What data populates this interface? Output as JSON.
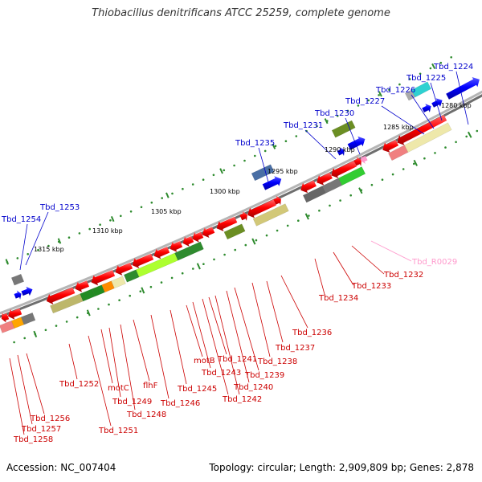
{
  "title": "Thiobacillus denitrificans ATCC 25259, complete genome",
  "footer": {
    "accession": "Accession: NC_007404",
    "summary": "Topology: circular; Length: 2,909,809 bp; Genes: 2,878"
  },
  "colors": {
    "backbone": "#8c8c8c",
    "forward_label": "#0000cc",
    "reverse_label": "#cc0000",
    "rna_label": "#ff99cc",
    "tick": "#2e8b2e"
  },
  "scale_labels": [
    "1280 kbp",
    "1285 kbp",
    "1290 kbp",
    "1295 kbp",
    "1300 kbp",
    "1305 kbp",
    "1310 kbp",
    "1315 kbp"
  ],
  "forward_genes": [
    "Tbd_1224",
    "Tbd_1225",
    "Tbd_1226",
    "Tbd_1227",
    "Tbd_1230",
    "Tbd_1231",
    "Tbd_1235",
    "Tbd_1253",
    "Tbd_1254"
  ],
  "reverse_genes": [
    "Tbd_R0029",
    "Tbd_1232",
    "Tbd_1233",
    "Tbd_1234",
    "Tbd_1236",
    "Tbd_1237",
    "Tbd_1238",
    "Tbd_1239",
    "Tbd_1240",
    "Tbd_1241",
    "Tbd_1242",
    "motB",
    "Tbd_1243",
    "Tbd_1245",
    "Tbd_1246",
    "flhF",
    "Tbd_1248",
    "Tbd_1249",
    "motC",
    "Tbd_1251",
    "Tbd_1252",
    "Tbd_1256",
    "Tbd_1257",
    "Tbd_1258"
  ]
}
